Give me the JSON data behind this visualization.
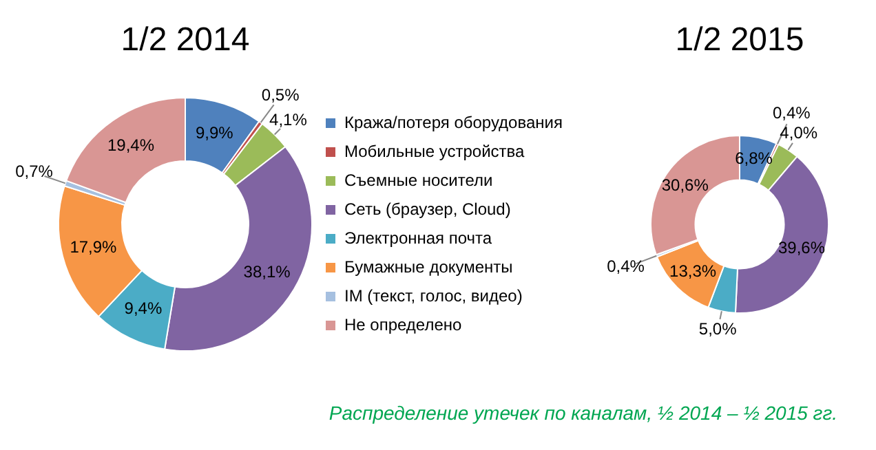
{
  "chart_data": [
    {
      "type": "donut",
      "title": "1/2 2014",
      "categories": [
        "Кража/потеря оборудования",
        "Мобильные устройства",
        "Съемные носители",
        "Сеть (браузер, Cloud)",
        "Электронная почта",
        "Бумажные документы",
        "IM (текст, голос, видео)",
        "Не определено"
      ],
      "values": [
        9.9,
        0.5,
        4.1,
        38.1,
        9.4,
        17.9,
        0.7,
        19.4
      ],
      "colors": [
        "#4f81bd",
        "#c0504d",
        "#9bbb59",
        "#8064a2",
        "#4bacc6",
        "#f79646",
        "#a6c0e0",
        "#d99694"
      ],
      "value_labels": [
        "9,9%",
        "0,5%",
        "4,1%",
        "38,1%",
        "9,4%",
        "17,9%",
        "0,7%",
        "19,4%"
      ],
      "legend": "right",
      "annotations": [
        "Распределение утечек по каналам, ½ 2014 – ½ 2015 гг."
      ]
    },
    {
      "type": "donut",
      "title": "1/2 2015",
      "categories": [
        null,
        null,
        null,
        null,
        null,
        null,
        null,
        null
      ],
      "values": [
        6.8,
        0.4,
        4.0,
        39.6,
        5.0,
        13.3,
        0.4,
        30.6
      ],
      "colors": [
        "#4f81bd",
        "#c0504d",
        "#9bbb59",
        "#8064a2",
        "#4bacc6",
        "#f79646",
        "#a6c0e0",
        "#d99694"
      ],
      "value_labels": [
        "6,8%",
        "0,4%",
        "4,0%",
        "39,6%",
        "5,0%",
        "13,3%",
        "0,4%",
        "30,6%"
      ]
    }
  ]
}
